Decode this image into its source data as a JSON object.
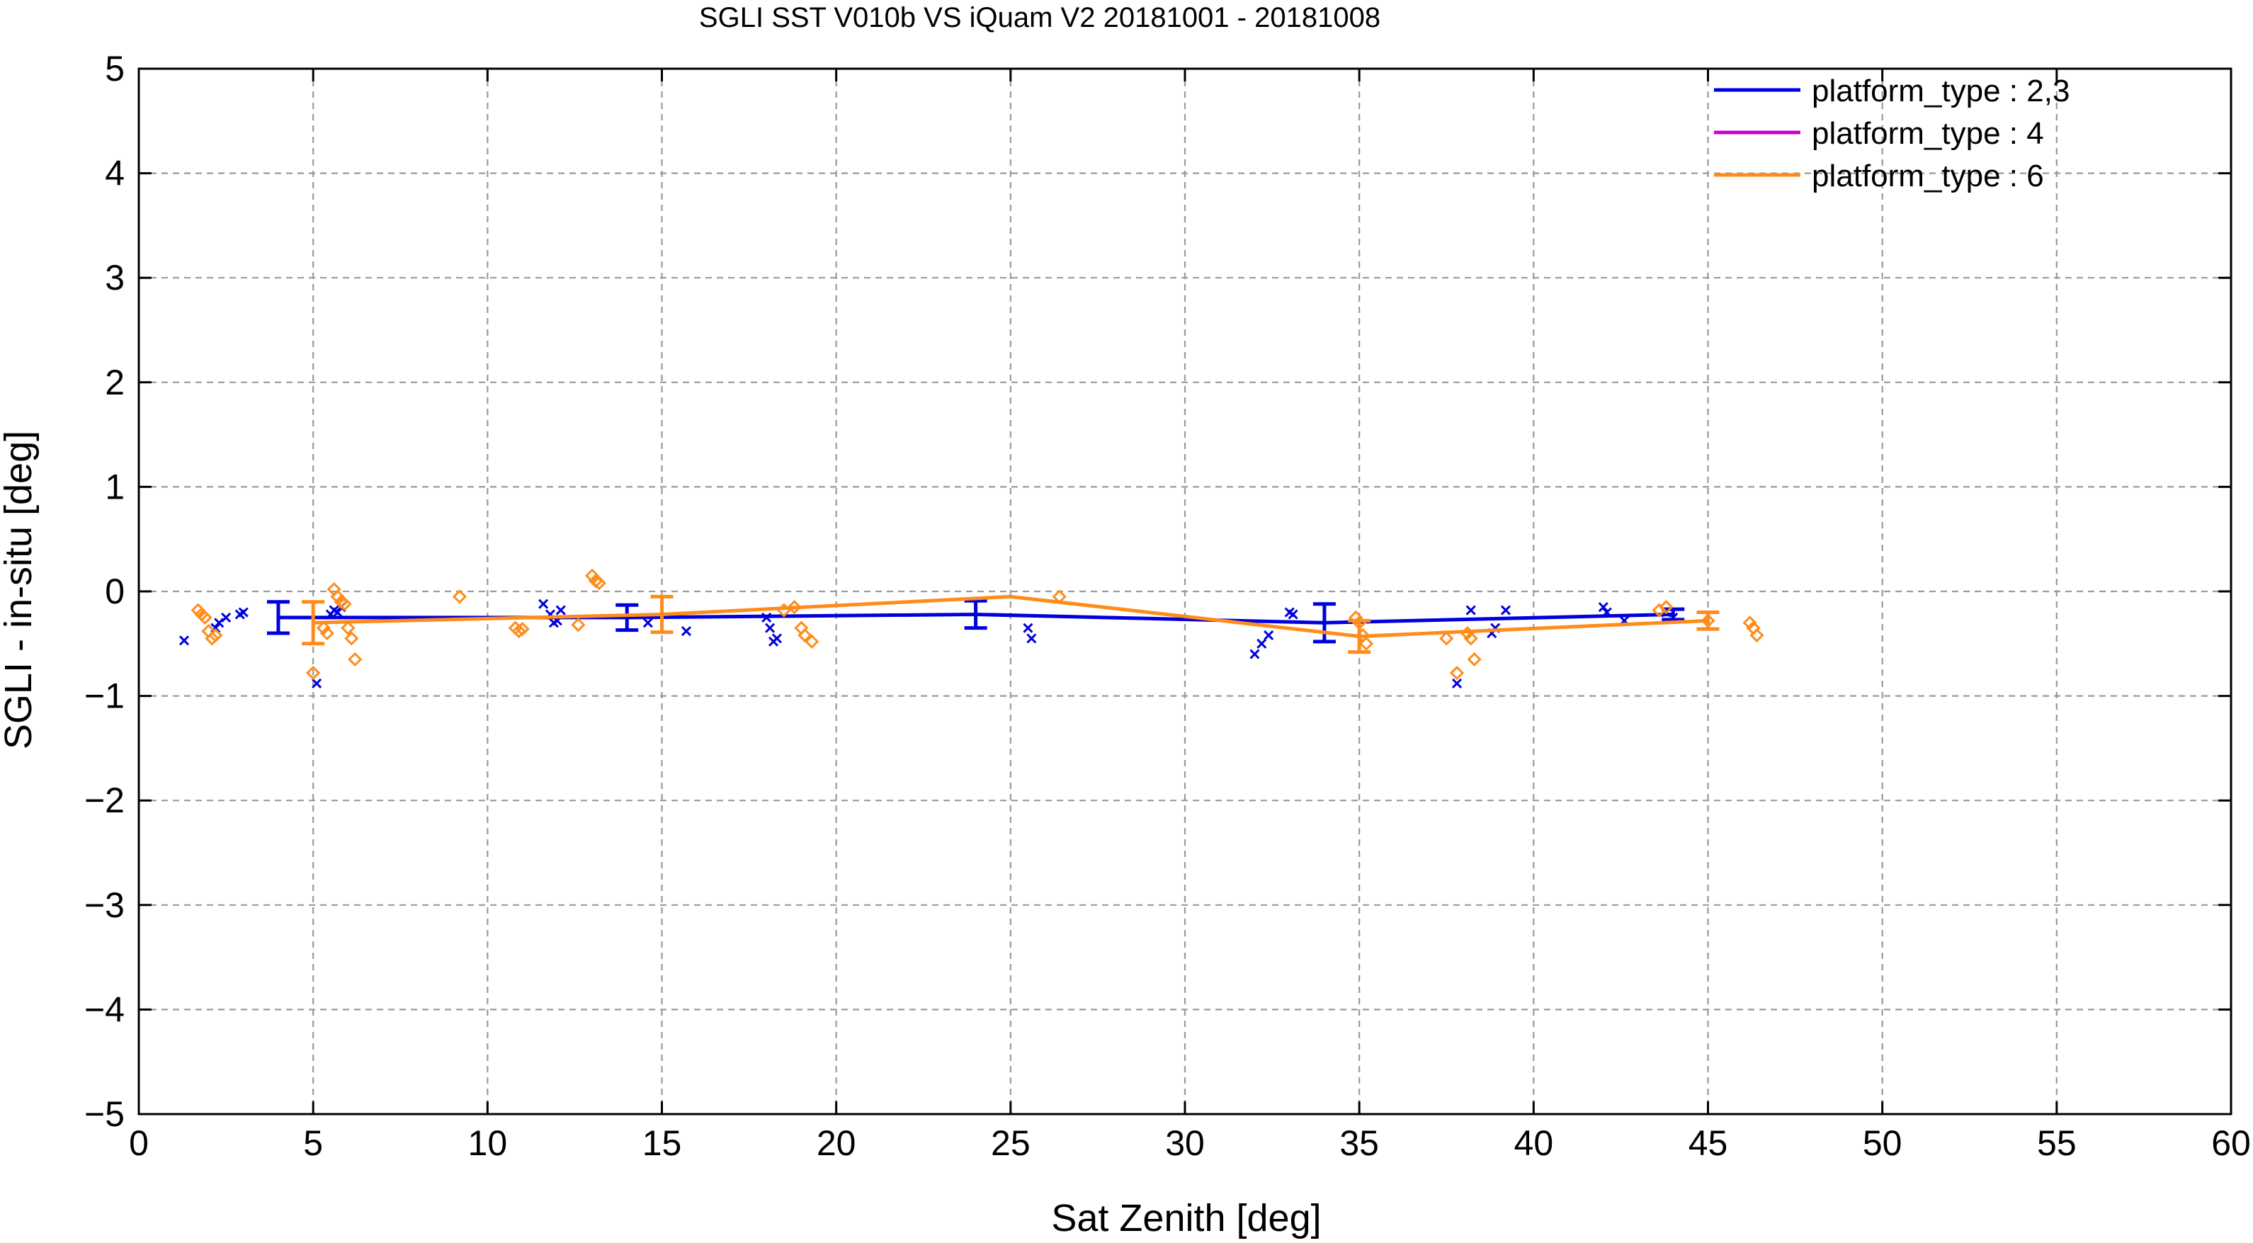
{
  "chart_data": {
    "type": "scatter",
    "title": "SGLI SST V010b VS iQuam V2 20181001 - 20181008",
    "xlabel": "Sat Zenith [deg]",
    "ylabel": "SGLI - in-situ [deg]",
    "xlim": [
      0,
      60
    ],
    "ylim": [
      -5,
      5
    ],
    "xticks": [
      0,
      5,
      10,
      15,
      20,
      25,
      30,
      35,
      40,
      45,
      50,
      55,
      60
    ],
    "yticks": [
      -5,
      -4,
      -3,
      -2,
      -1,
      0,
      1,
      2,
      3,
      4,
      5
    ],
    "ytick_labels": [
      "−5",
      "−4",
      "−3",
      "−2",
      "−1",
      "0",
      "1",
      "2",
      "3",
      "4",
      "5"
    ],
    "grid": true,
    "legend_position": "top-right",
    "series": [
      {
        "name": "platform_type : 2,3",
        "color": "#0000dd",
        "marker": "x",
        "points": [
          [
            1.3,
            -0.47
          ],
          [
            2.2,
            -0.35
          ],
          [
            2.3,
            -0.3
          ],
          [
            2.5,
            -0.25
          ],
          [
            2.9,
            -0.22
          ],
          [
            3.0,
            -0.2
          ],
          [
            5.1,
            -0.88
          ],
          [
            5.5,
            -0.22
          ],
          [
            5.6,
            -0.18
          ],
          [
            5.7,
            -0.2
          ],
          [
            5.8,
            -0.15
          ],
          [
            11.6,
            -0.12
          ],
          [
            11.8,
            -0.22
          ],
          [
            11.9,
            -0.3
          ],
          [
            12.0,
            -0.28
          ],
          [
            12.1,
            -0.18
          ],
          [
            14.6,
            -0.3
          ],
          [
            15.7,
            -0.38
          ],
          [
            18.0,
            -0.25
          ],
          [
            18.1,
            -0.35
          ],
          [
            18.2,
            -0.48
          ],
          [
            18.3,
            -0.45
          ],
          [
            25.5,
            -0.35
          ],
          [
            25.6,
            -0.45
          ],
          [
            32.0,
            -0.6
          ],
          [
            32.2,
            -0.5
          ],
          [
            32.4,
            -0.42
          ],
          [
            33.0,
            -0.2
          ],
          [
            33.1,
            -0.22
          ],
          [
            37.8,
            -0.88
          ],
          [
            38.2,
            -0.18
          ],
          [
            38.8,
            -0.4
          ],
          [
            38.9,
            -0.35
          ],
          [
            39.2,
            -0.18
          ],
          [
            42.0,
            -0.15
          ],
          [
            42.1,
            -0.2
          ],
          [
            42.6,
            -0.28
          ],
          [
            43.8,
            -0.2
          ],
          [
            44.0,
            -0.25
          ]
        ],
        "mean_x": [
          4.0,
          14.0,
          24.0,
          34.0,
          44.0
        ],
        "mean_y": [
          -0.25,
          -0.25,
          -0.22,
          -0.3,
          -0.22
        ],
        "err": [
          0.15,
          0.12,
          0.13,
          0.18,
          0.05
        ]
      },
      {
        "name": "platform_type : 4",
        "color": "#cc00cc",
        "marker": "none",
        "points": [],
        "mean_x": [],
        "mean_y": [],
        "err": []
      },
      {
        "name": "platform_type : 6",
        "color": "#ff8c1a",
        "marker": "diamond",
        "points": [
          [
            1.7,
            -0.18
          ],
          [
            1.8,
            -0.22
          ],
          [
            1.9,
            -0.25
          ],
          [
            2.0,
            -0.38
          ],
          [
            2.1,
            -0.45
          ],
          [
            2.2,
            -0.42
          ],
          [
            5.0,
            -0.78
          ],
          [
            5.3,
            -0.35
          ],
          [
            5.4,
            -0.4
          ],
          [
            5.6,
            0.02
          ],
          [
            5.7,
            -0.05
          ],
          [
            5.8,
            -0.1
          ],
          [
            5.9,
            -0.12
          ],
          [
            6.0,
            -0.35
          ],
          [
            6.1,
            -0.45
          ],
          [
            6.2,
            -0.65
          ],
          [
            9.2,
            -0.05
          ],
          [
            10.8,
            -0.35
          ],
          [
            10.9,
            -0.38
          ],
          [
            11.0,
            -0.36
          ],
          [
            12.6,
            -0.32
          ],
          [
            13.0,
            0.15
          ],
          [
            13.1,
            0.1
          ],
          [
            13.2,
            0.08
          ],
          [
            18.5,
            -0.18
          ],
          [
            18.8,
            -0.15
          ],
          [
            19.0,
            -0.35
          ],
          [
            19.1,
            -0.42
          ],
          [
            19.3,
            -0.48
          ],
          [
            26.4,
            -0.05
          ],
          [
            34.9,
            -0.25
          ],
          [
            35.0,
            -0.3
          ],
          [
            35.1,
            -0.42
          ],
          [
            35.2,
            -0.5
          ],
          [
            37.5,
            -0.45
          ],
          [
            37.8,
            -0.78
          ],
          [
            38.1,
            -0.4
          ],
          [
            38.2,
            -0.45
          ],
          [
            38.3,
            -0.65
          ],
          [
            43.6,
            -0.18
          ],
          [
            43.8,
            -0.15
          ],
          [
            45.0,
            -0.28
          ],
          [
            46.2,
            -0.3
          ],
          [
            46.3,
            -0.35
          ],
          [
            46.4,
            -0.42
          ]
        ],
        "mean_x": [
          5.0,
          15.0,
          25.0,
          35.0,
          45.0
        ],
        "mean_y": [
          -0.3,
          -0.22,
          -0.05,
          -0.43,
          -0.28
        ],
        "err": [
          0.2,
          0.17,
          0.0,
          0.15,
          0.08
        ]
      }
    ]
  }
}
